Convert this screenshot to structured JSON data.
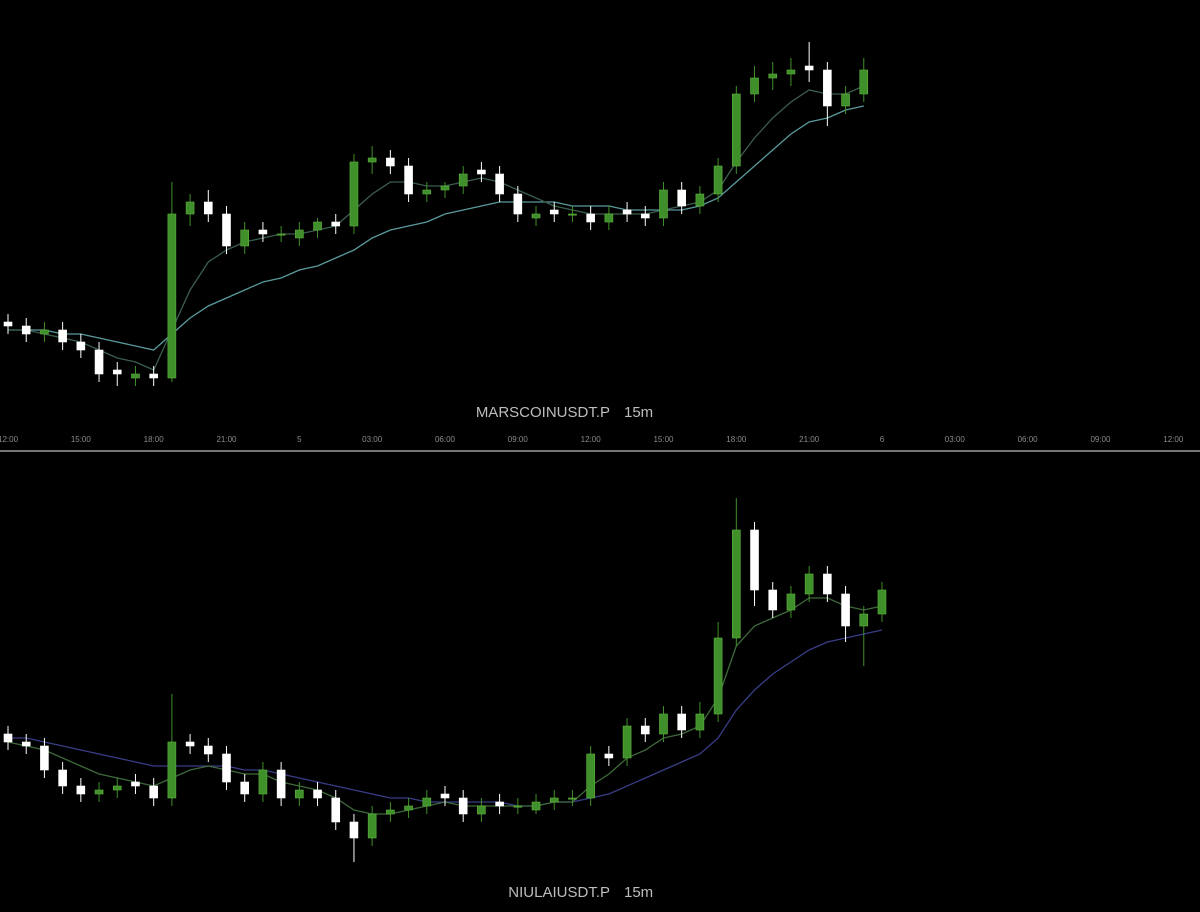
{
  "chart_data": [
    {
      "type": "candlestick",
      "symbol": "MARSCOINUSDT.P",
      "interval": "15m",
      "xlim": [
        -0.33,
        49.1
      ],
      "ylim": [
        0,
        100
      ],
      "xticks": [
        {
          "value": 0,
          "label": "12:00"
        },
        {
          "value": 3,
          "label": "15:00"
        },
        {
          "value": 6,
          "label": "18:00"
        },
        {
          "value": 9,
          "label": "21:00"
        },
        {
          "value": 12,
          "label": "5"
        },
        {
          "value": 15,
          "label": "03:00"
        },
        {
          "value": 18,
          "label": "06:00"
        },
        {
          "value": 21,
          "label": "09:00"
        },
        {
          "value": 24,
          "label": "12:00"
        },
        {
          "value": 27,
          "label": "15:00"
        },
        {
          "value": 30,
          "label": "18:00"
        },
        {
          "value": 33,
          "label": "21:00"
        },
        {
          "value": 36,
          "label": "6"
        },
        {
          "value": 39,
          "label": "03:00"
        },
        {
          "value": 42,
          "label": "06:00"
        },
        {
          "value": 45,
          "label": "09:00"
        },
        {
          "value": 48,
          "label": "12:00"
        }
      ],
      "up_color": "#3f8f2a",
      "down_color": "#ffffff",
      "x": [
        0,
        0.75,
        1.5,
        2.25,
        3,
        3.75,
        4.5,
        5.25,
        6,
        6.75,
        7.5,
        8.25,
        9,
        9.75,
        10.5,
        11.25,
        12,
        12.75,
        13.5,
        14.25,
        15,
        15.75,
        16.5,
        17.25,
        18,
        18.75,
        19.5,
        20.25,
        21,
        21.75,
        22.5,
        23.25,
        24,
        24.75,
        25.5,
        26.25,
        27,
        27.75,
        28.5,
        29.25,
        30,
        30.75,
        31.5,
        32.25,
        33,
        33.75,
        34.5,
        35.25
      ],
      "open": [
        27,
        26,
        24,
        25,
        22,
        20,
        15,
        13,
        14,
        13,
        54,
        57,
        54,
        46,
        50,
        49,
        48,
        50,
        52,
        51,
        67,
        68,
        66,
        59,
        60,
        61,
        65,
        64,
        59,
        53,
        55,
        54,
        54,
        52,
        55,
        54,
        53,
        60,
        56,
        59,
        66,
        84,
        88,
        89,
        91,
        90,
        81,
        84
      ],
      "high": [
        29,
        28,
        27,
        27,
        24,
        22,
        17,
        16,
        16,
        62,
        59,
        60,
        56,
        52,
        52,
        51,
        52,
        53,
        54,
        69,
        71,
        70,
        68,
        62,
        62,
        66,
        67,
        66,
        61,
        56,
        57,
        56,
        56,
        56,
        57,
        56,
        62,
        62,
        61,
        68,
        86,
        91,
        92,
        93,
        97,
        92,
        86,
        93
      ],
      "low": [
        24,
        22,
        22,
        20,
        18,
        12,
        11,
        11,
        11,
        12,
        51,
        52,
        44,
        44,
        47,
        47,
        46,
        48,
        49,
        49,
        64,
        64,
        57,
        57,
        58,
        59,
        62,
        57,
        52,
        51,
        52,
        52,
        50,
        50,
        52,
        51,
        51,
        54,
        54,
        57,
        64,
        82,
        85,
        86,
        87,
        76,
        79,
        82
      ],
      "close": [
        26,
        24,
        25,
        22,
        20,
        14,
        14,
        14,
        13,
        54,
        57,
        54,
        46,
        50,
        49,
        49,
        50,
        52,
        51,
        67,
        68,
        66,
        59,
        60,
        61,
        64,
        64,
        59,
        54,
        54,
        54,
        54,
        52,
        54,
        54,
        53,
        60,
        56,
        59,
        66,
        84,
        88,
        89,
        90,
        90,
        81,
        84,
        90
      ],
      "lines": [
        {
          "color": "#5a9a9c",
          "values": [
            25,
            25,
            25,
            24,
            24,
            23,
            22,
            21,
            20,
            24,
            28,
            31,
            33,
            35,
            37,
            38,
            40,
            41,
            43,
            45,
            48,
            50,
            51,
            52,
            54,
            55,
            56,
            57,
            57,
            57,
            57,
            56,
            56,
            56,
            55,
            55,
            55,
            55,
            56,
            58,
            62,
            66,
            70,
            74,
            77,
            78,
            80,
            81
          ]
        },
        {
          "color": "#3b5e4c",
          "values": [
            25,
            25,
            24,
            23,
            22,
            20,
            18,
            17,
            15,
            25,
            35,
            42,
            45,
            47,
            48,
            49,
            49,
            50,
            51,
            55,
            59,
            62,
            62,
            61,
            61,
            62,
            63,
            62,
            60,
            58,
            56,
            55,
            54,
            54,
            54,
            54,
            55,
            56,
            57,
            60,
            67,
            73,
            78,
            82,
            85,
            84,
            84,
            86
          ]
        }
      ]
    },
    {
      "type": "candlestick",
      "symbol": "NIULAIUSDT.P",
      "interval": "15m",
      "xlim": [
        -0.33,
        49.1
      ],
      "ylim": [
        0,
        100
      ],
      "up_color": "#3f8f2a",
      "down_color": "#ffffff",
      "x": [
        0,
        0.75,
        1.5,
        2.25,
        3,
        3.75,
        4.5,
        5.25,
        6,
        6.75,
        7.5,
        8.25,
        9,
        9.75,
        10.5,
        11.25,
        12,
        12.75,
        13.5,
        14.25,
        15,
        15.75,
        16.5,
        17.25,
        18,
        18.75,
        19.5,
        20.25,
        21,
        21.75,
        22.5,
        23.25,
        24,
        24.75,
        25.5,
        26.25,
        27,
        27.75,
        28.5,
        29.25,
        30,
        30.75,
        31.5,
        32.25,
        33,
        33.75,
        34.5,
        35.25,
        36
      ],
      "open": [
        34,
        32,
        31,
        25,
        21,
        19,
        20,
        22,
        21,
        18,
        32,
        31,
        29,
        22,
        19,
        25,
        18,
        20,
        18,
        12,
        8,
        14,
        15,
        16,
        19,
        18,
        14,
        17,
        16,
        15,
        17,
        18,
        18,
        29,
        28,
        36,
        34,
        39,
        35,
        39,
        58,
        85,
        70,
        65,
        69,
        74,
        69,
        61,
        64
      ],
      "high": [
        36,
        34,
        33,
        27,
        23,
        22,
        23,
        24,
        23,
        44,
        34,
        33,
        31,
        24,
        27,
        27,
        22,
        22,
        20,
        14,
        16,
        17,
        18,
        20,
        21,
        20,
        18,
        19,
        18,
        19,
        20,
        20,
        31,
        31,
        38,
        38,
        41,
        41,
        42,
        62,
        93,
        87,
        72,
        71,
        76,
        76,
        71,
        66,
        72
      ],
      "low": [
        30,
        29,
        23,
        19,
        17,
        17,
        18,
        19,
        16,
        16,
        29,
        27,
        20,
        17,
        17,
        16,
        16,
        16,
        10,
        2,
        6,
        12,
        13,
        14,
        16,
        12,
        12,
        14,
        14,
        14,
        15,
        16,
        16,
        26,
        26,
        32,
        32,
        33,
        33,
        37,
        56,
        66,
        63,
        63,
        67,
        67,
        57,
        51,
        62
      ],
      "close": [
        32,
        31,
        25,
        21,
        19,
        20,
        21,
        21,
        18,
        32,
        31,
        29,
        22,
        19,
        25,
        18,
        20,
        18,
        12,
        8,
        14,
        15,
        16,
        18,
        18,
        14,
        16,
        16,
        16,
        17,
        18,
        18,
        29,
        28,
        36,
        34,
        39,
        35,
        39,
        58,
        85,
        70,
        65,
        69,
        74,
        69,
        61,
        64,
        70
      ],
      "lines": [
        {
          "color": "#383d86",
          "values": [
            33,
            33,
            32,
            31,
            30,
            29,
            28,
            27,
            26,
            26,
            26,
            26,
            26,
            25,
            25,
            24,
            23,
            22,
            21,
            20,
            19,
            18,
            18,
            17,
            17,
            17,
            17,
            17,
            16,
            16,
            17,
            17,
            18,
            19,
            21,
            23,
            25,
            27,
            29,
            33,
            40,
            45,
            49,
            52,
            55,
            57,
            58,
            59,
            60
          ]
        },
        {
          "color": "#3d6a3a",
          "values": [
            32,
            31,
            30,
            28,
            26,
            24,
            23,
            22,
            21,
            23,
            25,
            26,
            25,
            24,
            24,
            22,
            21,
            20,
            18,
            15,
            14,
            14,
            15,
            16,
            17,
            16,
            16,
            16,
            16,
            16,
            17,
            17,
            21,
            24,
            28,
            30,
            33,
            34,
            36,
            43,
            56,
            61,
            63,
            65,
            68,
            68,
            66,
            65,
            66
          ]
        }
      ]
    }
  ]
}
